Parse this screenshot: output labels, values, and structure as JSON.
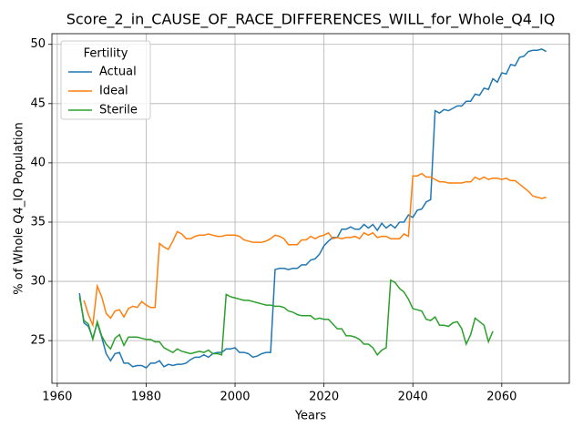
{
  "chart_data": {
    "type": "line",
    "title": "Score_2_in_CAUSE_OF_RACE_DIFFERENCES_WILL_for_Whole_Q4_IQ",
    "x_label": "Years",
    "y_label": "% of Whole Q4_IQ Population",
    "legend_title": "Fertility",
    "legend": "upper left",
    "grid": true,
    "xlim": [
      1958.8,
      2075.2
    ],
    "ylim": [
      21.4,
      50.9
    ],
    "xticks": [
      1960,
      1980,
      2000,
      2020,
      2040,
      2060
    ],
    "yticks": [
      25,
      30,
      35,
      40,
      45,
      50
    ],
    "series": [
      {
        "name": "Actual",
        "color": "#1f77b4",
        "x": [
          1965,
          1966,
          1967,
          1968,
          1969,
          1970,
          1971,
          1972,
          1973,
          1974,
          1975,
          1976,
          1977,
          1978,
          1979,
          1980,
          1981,
          1982,
          1983,
          1984,
          1985,
          1986,
          1987,
          1988,
          1989,
          1990,
          1991,
          1992,
          1993,
          1994,
          1995,
          1996,
          1997,
          1998,
          1999,
          2000,
          2001,
          2002,
          2003,
          2004,
          2005,
          2006,
          2007,
          2008,
          2009,
          2010,
          2011,
          2012,
          2013,
          2014,
          2015,
          2016,
          2017,
          2018,
          2019,
          2020,
          2021,
          2022,
          2023,
          2024,
          2025,
          2026,
          2027,
          2028,
          2029,
          2030,
          2031,
          2032,
          2033,
          2034,
          2035,
          2036,
          2037,
          2038,
          2039,
          2040,
          2041,
          2042,
          2043,
          2044,
          2045,
          2046,
          2047,
          2048,
          2049,
          2050,
          2051,
          2052,
          2053,
          2054,
          2055,
          2056,
          2057,
          2058,
          2059,
          2060,
          2061,
          2062,
          2063,
          2064,
          2065,
          2066,
          2067,
          2068,
          2069,
          2070
        ],
        "values": [
          29.0,
          26.5,
          26.2,
          25.2,
          26.5,
          25.3,
          23.9,
          23.3,
          23.9,
          24.0,
          23.1,
          23.1,
          22.8,
          22.9,
          22.9,
          22.7,
          23.1,
          23.1,
          23.3,
          22.8,
          23.0,
          22.9,
          23.0,
          23.0,
          23.1,
          23.4,
          23.6,
          23.6,
          23.8,
          23.6,
          23.9,
          24.0,
          24.0,
          24.3,
          24.3,
          24.4,
          24.0,
          24.0,
          23.9,
          23.6,
          23.7,
          23.9,
          24.0,
          24.0,
          31.0,
          31.1,
          31.1,
          31.0,
          31.1,
          31.1,
          31.4,
          31.4,
          31.8,
          31.9,
          32.3,
          33.0,
          33.4,
          33.7,
          33.7,
          34.4,
          34.4,
          34.6,
          34.4,
          34.4,
          34.8,
          34.5,
          34.8,
          34.3,
          34.9,
          34.5,
          34.8,
          34.5,
          35.0,
          35.0,
          35.6,
          35.4,
          36.0,
          36.1,
          36.7,
          36.9,
          44.4,
          44.2,
          44.5,
          44.4,
          44.6,
          44.8,
          44.8,
          45.2,
          45.2,
          45.8,
          45.7,
          46.3,
          46.2,
          47.1,
          46.8,
          47.6,
          47.5,
          48.3,
          48.2,
          48.9,
          49.0,
          49.4,
          49.5,
          49.5,
          49.6,
          49.4
        ]
      },
      {
        "name": "Ideal",
        "color": "#ff7f0e",
        "x": [
          1966,
          1967,
          1968,
          1969,
          1970,
          1971,
          1972,
          1973,
          1974,
          1975,
          1976,
          1977,
          1978,
          1979,
          1980,
          1981,
          1982,
          1983,
          1984,
          1985,
          1986,
          1987,
          1988,
          1989,
          1990,
          1991,
          1992,
          1993,
          1994,
          1995,
          1996,
          1997,
          1998,
          1999,
          2000,
          2001,
          2002,
          2003,
          2004,
          2005,
          2006,
          2007,
          2008,
          2009,
          2010,
          2011,
          2012,
          2013,
          2014,
          2015,
          2016,
          2017,
          2018,
          2019,
          2020,
          2021,
          2022,
          2023,
          2024,
          2025,
          2026,
          2027,
          2028,
          2029,
          2030,
          2031,
          2032,
          2033,
          2034,
          2035,
          2036,
          2037,
          2038,
          2039,
          2040,
          2041,
          2042,
          2043,
          2044,
          2045,
          2046,
          2047,
          2048,
          2049,
          2050,
          2051,
          2052,
          2053,
          2054,
          2055,
          2056,
          2057,
          2058,
          2059,
          2060,
          2061,
          2062,
          2063,
          2064,
          2065,
          2066,
          2067,
          2068,
          2069,
          2070
        ],
        "values": [
          28.4,
          27.2,
          26.3,
          29.6,
          28.7,
          27.3,
          26.9,
          27.5,
          27.6,
          27.0,
          27.7,
          27.9,
          27.8,
          28.3,
          28.0,
          27.8,
          27.8,
          33.2,
          32.9,
          32.7,
          33.4,
          34.2,
          34.0,
          33.6,
          33.6,
          33.8,
          33.9,
          33.9,
          34.0,
          33.9,
          33.8,
          33.8,
          33.9,
          33.9,
          33.9,
          33.8,
          33.5,
          33.4,
          33.3,
          33.3,
          33.3,
          33.4,
          33.6,
          33.9,
          33.8,
          33.6,
          33.1,
          33.1,
          33.1,
          33.5,
          33.5,
          33.8,
          33.6,
          33.8,
          33.9,
          34.1,
          33.6,
          33.7,
          33.6,
          33.7,
          33.7,
          33.8,
          33.6,
          34.1,
          33.9,
          34.1,
          33.7,
          33.8,
          33.8,
          33.6,
          33.6,
          33.6,
          34.0,
          33.8,
          38.9,
          38.9,
          39.1,
          38.8,
          38.8,
          38.6,
          38.4,
          38.4,
          38.3,
          38.3,
          38.3,
          38.3,
          38.4,
          38.4,
          38.8,
          38.6,
          38.8,
          38.6,
          38.7,
          38.7,
          38.6,
          38.7,
          38.5,
          38.5,
          38.2,
          37.9,
          37.6,
          37.2,
          37.1,
          37.0,
          37.1
        ]
      },
      {
        "name": "Sterile",
        "color": "#2ca02c",
        "x": [
          1965,
          1966,
          1967,
          1968,
          1969,
          1970,
          1971,
          1972,
          1973,
          1974,
          1975,
          1976,
          1977,
          1978,
          1979,
          1980,
          1981,
          1982,
          1983,
          1984,
          1985,
          1986,
          1987,
          1988,
          1989,
          1990,
          1991,
          1992,
          1993,
          1994,
          1995,
          1996,
          1997,
          1998,
          1999,
          2000,
          2001,
          2002,
          2003,
          2004,
          2005,
          2006,
          2007,
          2008,
          2009,
          2010,
          2011,
          2012,
          2013,
          2014,
          2015,
          2016,
          2017,
          2018,
          2019,
          2020,
          2021,
          2022,
          2023,
          2024,
          2025,
          2026,
          2027,
          2028,
          2029,
          2030,
          2031,
          2032,
          2033,
          2034,
          2035,
          2036,
          2037,
          2038,
          2039,
          2040,
          2041,
          2042,
          2043,
          2044,
          2045,
          2046,
          2047,
          2048,
          2049,
          2050,
          2051,
          2052,
          2053,
          2054,
          2055,
          2056,
          2057,
          2058
        ],
        "values": [
          28.7,
          26.7,
          26.4,
          25.1,
          26.6,
          25.4,
          24.7,
          24.3,
          25.2,
          25.5,
          24.6,
          25.3,
          25.3,
          25.3,
          25.2,
          25.1,
          25.1,
          24.9,
          24.9,
          24.4,
          24.2,
          24.0,
          24.3,
          24.1,
          24.0,
          23.9,
          24.0,
          24.1,
          24.0,
          24.2,
          23.9,
          23.9,
          23.8,
          28.9,
          28.7,
          28.6,
          28.5,
          28.4,
          28.4,
          28.3,
          28.2,
          28.1,
          28.0,
          28.0,
          27.9,
          27.9,
          27.8,
          27.5,
          27.4,
          27.2,
          27.1,
          27.1,
          27.1,
          26.8,
          26.9,
          26.8,
          26.8,
          26.4,
          26.0,
          26.0,
          25.4,
          25.4,
          25.3,
          25.1,
          24.7,
          24.7,
          24.4,
          23.8,
          24.2,
          24.4,
          30.1,
          29.9,
          29.4,
          29.1,
          28.5,
          27.7,
          27.6,
          27.5,
          26.8,
          26.7,
          27.0,
          26.3,
          26.3,
          26.2,
          26.5,
          26.6,
          26.0,
          24.7,
          25.5,
          26.9,
          26.6,
          26.3,
          24.9,
          25.8
        ]
      }
    ]
  }
}
